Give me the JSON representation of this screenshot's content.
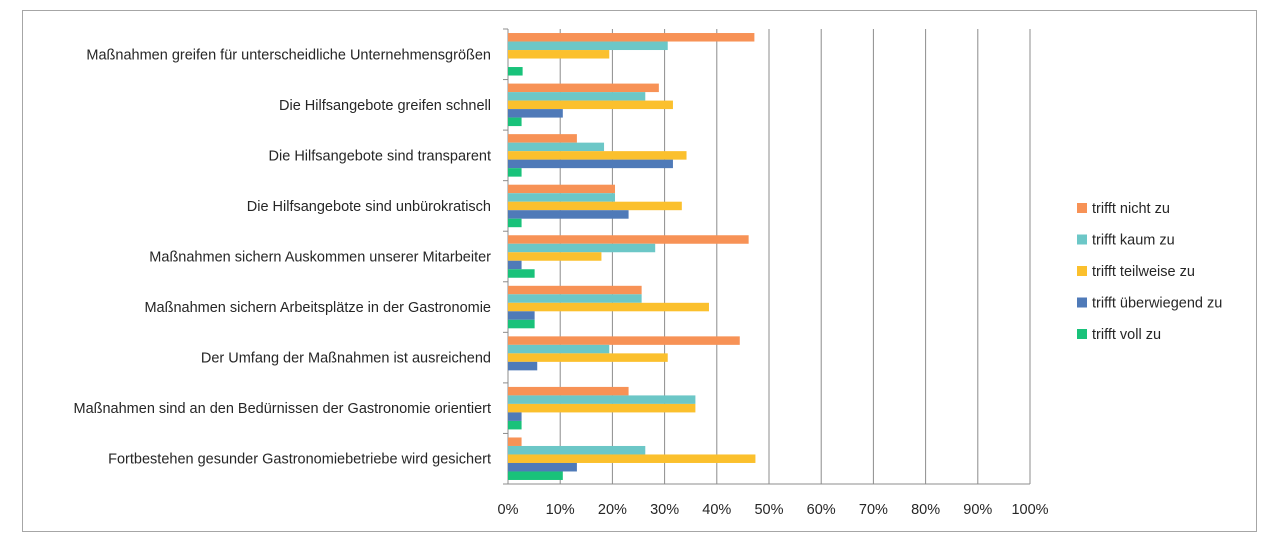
{
  "chart_data": {
    "type": "bar",
    "orientation": "horizontal",
    "title": "",
    "xlabel": "",
    "ylabel": "",
    "xlim": [
      0,
      100
    ],
    "x_ticks": [
      "0%",
      "10%",
      "20%",
      "30%",
      "40%",
      "50%",
      "60%",
      "70%",
      "80%",
      "90%",
      "100%"
    ],
    "grid": true,
    "legend_position": "right",
    "categories": [
      "Maßnahmen greifen für unterscheidliche Unternehmensgrößen",
      "Die Hilfsangebote greifen schnell",
      "Die Hilfsangebote sind transparent",
      "Die Hilfsangebote sind unbürokratisch",
      "Maßnahmen sichern Auskommen unserer Mitarbeiter",
      "Maßnahmen sichern Arbeitsplätze in der Gastronomie",
      "Der Umfang der Maßnahmen ist ausreichend",
      "Maßnahmen sind an den Bedürnissen der Gastronomie orientiert",
      "Fortbestehen gesunder Gastronomiebetriebe wird gesichert"
    ],
    "series": [
      {
        "name": "trifft nicht zu",
        "color": "#f79256",
        "values": [
          47.2,
          28.9,
          13.2,
          20.5,
          46.1,
          25.6,
          44.4,
          23.1,
          2.6
        ]
      },
      {
        "name": "trifft kaum zu",
        "color": "#6cc7c7",
        "values": [
          30.6,
          26.3,
          18.4,
          20.5,
          28.2,
          25.6,
          19.4,
          35.9,
          26.3
        ]
      },
      {
        "name": "trifft teilweise zu",
        "color": "#fbc02d",
        "values": [
          19.4,
          31.6,
          34.2,
          33.3,
          17.9,
          38.5,
          30.6,
          35.9,
          47.4
        ]
      },
      {
        "name": "trifft überwiegend zu",
        "color": "#4f7ab8",
        "values": [
          0,
          10.5,
          31.6,
          23.1,
          2.6,
          5.1,
          5.6,
          2.6,
          13.2
        ]
      },
      {
        "name": "trifft voll zu",
        "color": "#19c27a",
        "values": [
          2.8,
          2.6,
          2.6,
          2.6,
          5.1,
          5.1,
          0,
          2.6,
          10.5
        ]
      }
    ]
  }
}
